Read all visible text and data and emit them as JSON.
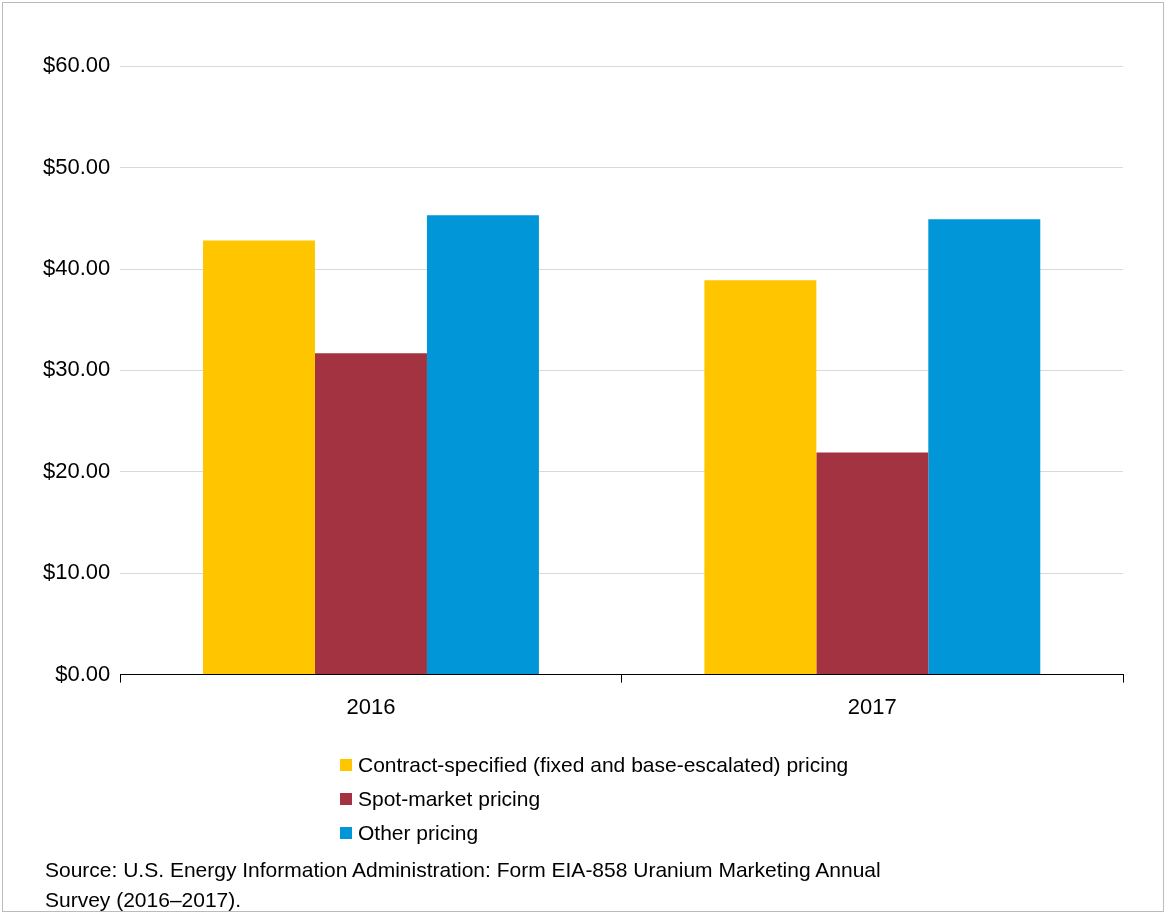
{
  "chart_data": {
    "type": "bar",
    "categories": [
      "2016",
      "2017"
    ],
    "series": [
      {
        "name": "Contract-specified (fixed and base-escalated) pricing",
        "color": "#ffc600",
        "values": [
          42.8,
          38.9
        ]
      },
      {
        "name": "Spot-market pricing",
        "color": "#a33340",
        "values": [
          31.7,
          21.9
        ]
      },
      {
        "name": "Other pricing",
        "color": "#0096d7",
        "values": [
          45.3,
          44.9
        ]
      }
    ],
    "ylim": [
      0,
      60
    ],
    "yticks": [
      {
        "value": 0,
        "label": "$0.00"
      },
      {
        "value": 10,
        "label": "$10.00"
      },
      {
        "value": 20,
        "label": "$20.00"
      },
      {
        "value": 30,
        "label": "$30.00"
      },
      {
        "value": 40,
        "label": "$40.00"
      },
      {
        "value": 50,
        "label": "$50.00"
      },
      {
        "value": 60,
        "label": "$60.00"
      }
    ],
    "grid": "y",
    "legend": "bottom",
    "annotations": [
      "Source:  U.S. Energy Information Administration: Form EIA-858 Uranium Marketing Annual Survey (2016–2017)."
    ]
  }
}
